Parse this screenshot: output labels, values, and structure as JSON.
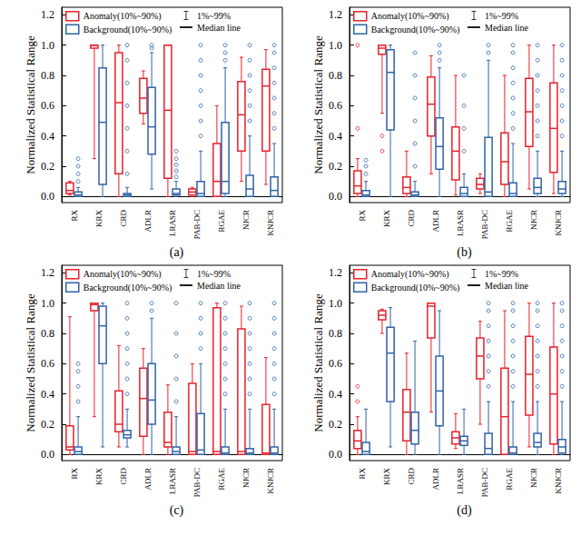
{
  "chart_data": [
    {
      "type": "boxplot",
      "title": "(a)",
      "y_label": "Normalized Statistical Range",
      "categories": [
        "RX",
        "KRX",
        "CRD",
        "ADLR",
        "LRASR",
        "PAB-DC",
        "RGAE",
        "NJCR",
        "KNJCR"
      ],
      "annotations": [
        "1%~99%",
        "Median line"
      ],
      "legend": "upper left",
      "ylim": [
        -0.04,
        1.25
      ],
      "yticks": [
        {
          "value": 0,
          "label": "0.0"
        },
        0.2,
        0.4,
        0.6,
        0.8,
        {
          "value": 1,
          "label": "1.0"
        },
        1.2
      ],
      "series": [
        {
          "name": "Anomaly(10%~90%)",
          "color": "#e8202a",
          "values": [
            [
              0.01,
              0.02,
              0.04,
              0.09,
              0.1
            ],
            [
              0.25,
              0.98,
              1.0,
              1.0,
              1.0
            ],
            [
              0,
              0.15,
              0.62,
              0.95,
              1.0
            ],
            [
              0.48,
              0.55,
              0.65,
              0.78,
              0.83
            ],
            [
              0,
              0.12,
              0.57,
              1.0,
              1.0
            ],
            [
              0,
              0.01,
              0.03,
              0.05,
              0.06
            ],
            [
              0,
              0,
              0.1,
              0.35,
              0.6
            ],
            [
              0.1,
              0.3,
              0.54,
              0.76,
              0.92
            ],
            [
              0.08,
              0.3,
              0.73,
              0.84,
              0.97
            ]
          ],
          "outliers": [
            [],
            [],
            [],
            [],
            [],
            [],
            [],
            [],
            []
          ]
        },
        {
          "name": "Background(10%~90%)",
          "color": "#2f63a8",
          "values": [
            [
              0,
              0,
              0.01,
              0.03,
              0.06
            ],
            [
              0,
              0.08,
              0.49,
              0.85,
              1.0
            ],
            [
              0,
              0,
              0.01,
              0.02,
              0.06
            ],
            [
              0.05,
              0.28,
              0.46,
              0.72,
              0.95
            ],
            [
              0,
              0.01,
              0.02,
              0.05,
              0.1
            ],
            [
              0,
              0,
              0.02,
              0.1,
              0.3
            ],
            [
              0,
              0.02,
              0.1,
              0.49,
              0.85
            ],
            [
              0,
              0,
              0.05,
              0.14,
              0.4
            ],
            [
              0,
              0,
              0.04,
              0.13,
              0.35
            ]
          ],
          "outliers": [
            [
              0.1,
              0.15,
              0.2,
              0.25
            ],
            [],
            [
              0.15,
              0.3,
              0.45,
              0.6,
              0.75,
              0.9,
              1.0
            ],
            [
              0.98,
              1.0
            ],
            [
              0.13,
              0.17,
              0.21,
              0.25,
              0.3
            ],
            [
              0.4,
              0.5,
              0.6,
              0.7,
              0.8,
              0.9,
              1.0
            ],
            [
              0.9,
              0.95,
              1.0
            ],
            [
              0.5,
              0.6,
              0.7,
              0.8,
              0.9,
              1.0
            ],
            [
              0.45,
              0.55,
              0.65,
              0.75,
              0.85,
              0.95,
              1.0
            ]
          ]
        }
      ]
    },
    {
      "type": "boxplot",
      "title": "(b)",
      "y_label": "Normalized Statistical Range",
      "categories": [
        "RX",
        "KRX",
        "CRD",
        "ADLR",
        "LRASR",
        "PAB-DC",
        "RGAE",
        "NJCR",
        "KNJCR"
      ],
      "annotations": [
        "1%~99%",
        "Median line"
      ],
      "legend": "upper left",
      "ylim": [
        -0.04,
        1.25
      ],
      "yticks": [
        {
          "value": 0,
          "label": "0.0"
        },
        0.2,
        0.4,
        0.6,
        0.8,
        {
          "value": 1,
          "label": "1.0"
        },
        1.2
      ],
      "series": [
        {
          "name": "Anomaly(10%~90%)",
          "color": "#e8202a",
          "values": [
            [
              0,
              0.02,
              0.07,
              0.17,
              0.25
            ],
            [
              0.55,
              0.94,
              0.98,
              1.0,
              1.0
            ],
            [
              0,
              0.02,
              0.06,
              0.13,
              0.3
            ],
            [
              0.15,
              0.4,
              0.61,
              0.79,
              0.93
            ],
            [
              0.01,
              0.11,
              0.3,
              0.46,
              0.8
            ],
            [
              0.02,
              0.05,
              0.08,
              0.12,
              0.15
            ],
            [
              0,
              0.08,
              0.23,
              0.42,
              0.8
            ],
            [
              0.05,
              0.33,
              0.56,
              0.78,
              1.0
            ],
            [
              0.02,
              0.16,
              0.45,
              0.75,
              1.0
            ]
          ],
          "outliers": [
            [
              0.45,
              1.0
            ],
            [
              0.3,
              0.4
            ],
            [],
            [],
            [],
            [],
            [],
            [],
            []
          ]
        },
        {
          "name": "Background(10%~90%)",
          "color": "#2f63a8",
          "values": [
            [
              0,
              0,
              0.01,
              0.04,
              0.1
            ],
            [
              0,
              0.44,
              0.82,
              0.97,
              1.0
            ],
            [
              0,
              0,
              0.01,
              0.03,
              0.1
            ],
            [
              0,
              0.18,
              0.33,
              0.52,
              0.85
            ],
            [
              0,
              0,
              0.02,
              0.06,
              0.15
            ],
            [
              0,
              0,
              0.03,
              0.39,
              0.9
            ],
            [
              0,
              0,
              0.02,
              0.09,
              0.35
            ],
            [
              0,
              0.02,
              0.06,
              0.12,
              0.3
            ],
            [
              0,
              0.02,
              0.05,
              0.1,
              0.3
            ]
          ],
          "outliers": [
            [
              0.15,
              0.2,
              0.24
            ],
            [],
            [
              0.2,
              0.35,
              0.5,
              0.65,
              0.8,
              0.95
            ],
            [
              0.9,
              0.95,
              1.0
            ],
            [
              0.3,
              0.45,
              0.6,
              0.8
            ],
            [
              0.95,
              1.0
            ],
            [
              0.45,
              0.55,
              0.65,
              0.75,
              0.85,
              0.95,
              1.0
            ],
            [
              0.4,
              0.5,
              0.6,
              0.7,
              0.8,
              0.9,
              1.0
            ],
            [
              0.4,
              0.5,
              0.6,
              0.7,
              0.8,
              0.9,
              1.0
            ]
          ]
        }
      ]
    },
    {
      "type": "boxplot",
      "title": "(c)",
      "y_label": "Normalized Statistical Range",
      "categories": [
        "RX",
        "KRX",
        "CRD",
        "ADLR",
        "LRASR",
        "PAB-DC",
        "RGAE",
        "NJCR",
        "KNJCR"
      ],
      "annotations": [
        "1%~99%",
        "Median line"
      ],
      "legend": "upper left",
      "ylim": [
        -0.04,
        1.25
      ],
      "yticks": [
        {
          "value": 0,
          "label": "0.0"
        },
        0.2,
        0.4,
        0.6,
        0.8,
        {
          "value": 1,
          "label": "1.0"
        },
        1.2
      ],
      "series": [
        {
          "name": "Anomaly(10%~90%)",
          "color": "#e8202a",
          "values": [
            [
              0,
              0.03,
              0.05,
              0.19,
              0.91
            ],
            [
              0.25,
              0.95,
              0.99,
              1.0,
              1.0
            ],
            [
              0.05,
              0.15,
              0.2,
              0.42,
              0.72
            ],
            [
              0,
              0.12,
              0.37,
              0.57,
              0.7
            ],
            [
              0,
              0.05,
              0.08,
              0.28,
              0.46
            ],
            [
              0,
              0,
              0.02,
              0.47,
              0.6
            ],
            [
              0,
              0,
              0.02,
              0.97,
              1.0
            ],
            [
              0,
              0,
              0.02,
              0.83,
              0.98
            ],
            [
              0,
              0,
              0.01,
              0.33,
              0.64
            ]
          ],
          "outliers": [
            [],
            [],
            [],
            [],
            [],
            [],
            [],
            [],
            []
          ]
        },
        {
          "name": "Background(10%~90%)",
          "color": "#2f63a8",
          "values": [
            [
              0,
              0,
              0.02,
              0.05,
              0.25
            ],
            [
              0.05,
              0.6,
              0.85,
              0.98,
              1.0
            ],
            [
              0.05,
              0.11,
              0.13,
              0.16,
              0.3
            ],
            [
              0,
              0.2,
              0.36,
              0.6,
              0.9
            ],
            [
              0,
              0,
              0.02,
              0.05,
              0.25
            ],
            [
              0,
              0,
              0.03,
              0.27,
              0.6
            ],
            [
              0,
              0,
              0.01,
              0.05,
              0.3
            ],
            [
              0,
              0,
              0.01,
              0.04,
              0.3
            ],
            [
              0,
              0,
              0.01,
              0.05,
              0.3
            ]
          ],
          "outliers": [
            [
              0.35,
              0.45,
              0.55,
              0.6
            ],
            [],
            [
              0.4,
              0.5,
              0.6,
              0.7,
              0.8,
              0.9,
              1.0
            ],
            [
              0.95,
              1.0
            ],
            [
              0.35,
              0.5,
              0.65,
              0.8,
              1.0
            ],
            [
              0.7,
              0.8,
              0.9,
              1.0
            ],
            [
              0.4,
              0.5,
              0.6,
              0.7,
              0.8,
              0.9,
              1.0
            ],
            [
              0.4,
              0.5,
              0.6,
              0.7,
              0.8,
              0.9,
              1.0
            ],
            [
              0.4,
              0.5,
              0.6,
              0.7,
              0.8,
              0.9,
              1.0
            ]
          ]
        }
      ]
    },
    {
      "type": "boxplot",
      "title": "(d)",
      "y_label": "Normalized Statistical Range",
      "categories": [
        "RX",
        "KRX",
        "CRD",
        "ADLR",
        "LRASR",
        "PAB-DC",
        "RGAE",
        "NJCR",
        "KNJCR"
      ],
      "annotations": [
        "1%~99%",
        "Median line"
      ],
      "legend": "upper left",
      "ylim": [
        -0.04,
        1.25
      ],
      "yticks": [
        {
          "value": 0,
          "label": "0.0"
        },
        0.2,
        0.4,
        0.6,
        0.8,
        {
          "value": 1,
          "label": "1.0"
        },
        1.2
      ],
      "series": [
        {
          "name": "Anomaly(10%~90%)",
          "color": "#e8202a",
          "values": [
            [
              0,
              0.04,
              0.09,
              0.16,
              0.25
            ],
            [
              0.8,
              0.89,
              0.92,
              0.95,
              0.96
            ],
            [
              0,
              0.09,
              0.28,
              0.43,
              0.67
            ],
            [
              0.28,
              0.77,
              0.98,
              1.0,
              1.0
            ],
            [
              0.04,
              0.07,
              0.11,
              0.15,
              0.27
            ],
            [
              0.2,
              0.5,
              0.65,
              0.77,
              0.88
            ],
            [
              0,
              0,
              0.25,
              0.57,
              0.95
            ],
            [
              0.05,
              0.26,
              0.53,
              0.78,
              1.0
            ],
            [
              0,
              0.07,
              0.4,
              0.71,
              1.0
            ]
          ],
          "outliers": [
            [
              0.35,
              0.45
            ],
            [],
            [],
            [],
            [],
            [],
            [],
            [],
            []
          ]
        },
        {
          "name": "Background(10%~90%)",
          "color": "#2f63a8",
          "values": [
            [
              0,
              0,
              0.02,
              0.08,
              0.3
            ],
            [
              0.05,
              0.35,
              0.67,
              0.84,
              0.97
            ],
            [
              0,
              0.07,
              0.16,
              0.28,
              0.75
            ],
            [
              0,
              0.19,
              0.42,
              0.65,
              0.95
            ],
            [
              0,
              0.06,
              0.09,
              0.12,
              0.3
            ],
            [
              0,
              0,
              0.04,
              0.14,
              0.35
            ],
            [
              0,
              0,
              0.01,
              0.05,
              0.35
            ],
            [
              0,
              0.05,
              0.08,
              0.14,
              0.35
            ],
            [
              0,
              0.01,
              0.05,
              0.1,
              0.35
            ]
          ],
          "outliers": [
            [],
            [],
            [],
            [],
            [],
            [
              0.45,
              0.55,
              0.65,
              0.75,
              0.85,
              0.95,
              1.0
            ],
            [
              0.45,
              0.55,
              0.65,
              0.75,
              0.85,
              0.95,
              1.0
            ],
            [
              0.45,
              0.55,
              0.65,
              0.75,
              0.85,
              0.95,
              1.0
            ],
            [
              0.45,
              0.55,
              0.65,
              0.75,
              0.85,
              0.95,
              1.0
            ]
          ]
        }
      ]
    }
  ]
}
